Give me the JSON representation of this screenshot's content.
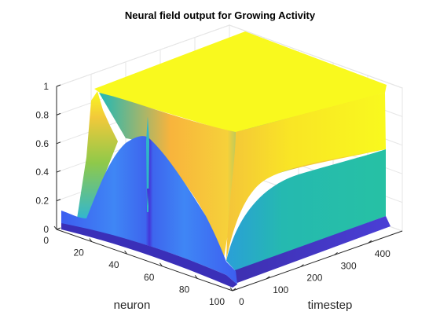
{
  "chart_data": {
    "type": "surface",
    "title": "Neural field output for Growing Activity",
    "xlabel": "neuron",
    "ylabel": "timestep",
    "zlabel": "",
    "x_ticks": [
      "0",
      "20",
      "40",
      "60",
      "80",
      "100"
    ],
    "y_ticks": [
      "0",
      "100",
      "200",
      "300",
      "400"
    ],
    "z_ticks": [
      "0",
      "0.2",
      "0.4",
      "0.6",
      "0.8",
      "1"
    ],
    "x_range": [
      0,
      100
    ],
    "y_range": [
      0,
      500
    ],
    "z_range": [
      0,
      1
    ],
    "grid": true,
    "colormap": "parula",
    "description_values": {
      "plateau_level": 1.0,
      "late_timestep_mid_level": 0.55,
      "early_timestep_peak": 0.7,
      "central_valley_neuron": 50,
      "edge_initial_level": 0.12
    }
  }
}
